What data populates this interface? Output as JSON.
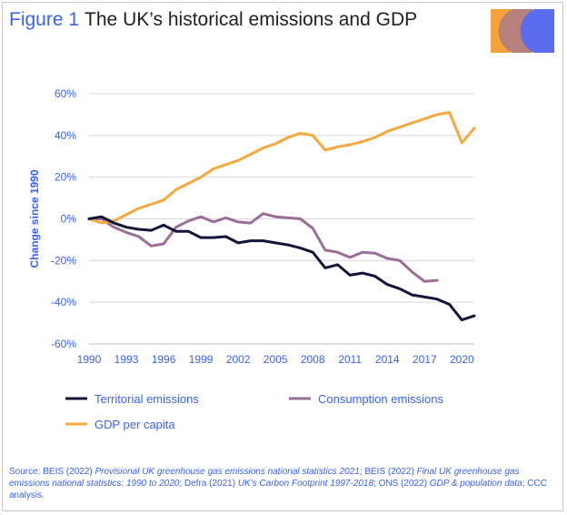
{
  "header": {
    "figure_label": "Figure 1",
    "title": "The UK’s historical emissions and GDP"
  },
  "logo": {
    "colors": [
      "#f5a23a",
      "#b8807a",
      "#5a6cf0"
    ]
  },
  "colors": {
    "accent_blue": "#3a63f0",
    "territorial": "#15153a",
    "consumption": "#9a6e96",
    "gdp": "#f5a93f"
  },
  "chart_data": {
    "type": "line",
    "ylabel": "Change since 1990",
    "xlabel": "",
    "xlim": [
      1990,
      2021
    ],
    "ylim": [
      -60,
      60
    ],
    "x_ticks": [
      1990,
      1993,
      1996,
      1999,
      2002,
      2005,
      2008,
      2011,
      2014,
      2017,
      2020
    ],
    "y_ticks": [
      60,
      40,
      20,
      0,
      -20,
      -40,
      -60
    ],
    "y_tick_labels": [
      "60%",
      "40%",
      "20%",
      "0%",
      "-20%",
      "-40%",
      "-60%"
    ],
    "legend_position": "bottom",
    "series": [
      {
        "name": "Territorial emissions",
        "color": "#15153a",
        "x": [
          1990,
          1991,
          1992,
          1993,
          1994,
          1995,
          1996,
          1997,
          1998,
          1999,
          2000,
          2001,
          2002,
          2003,
          2004,
          2005,
          2006,
          2007,
          2008,
          2009,
          2010,
          2011,
          2012,
          2013,
          2014,
          2015,
          2016,
          2017,
          2018,
          2019,
          2020,
          2021
        ],
        "values": [
          0,
          1,
          -2,
          -4,
          -5,
          -5.5,
          -3,
          -6,
          -6,
          -9,
          -9,
          -8.5,
          -11.5,
          -10.5,
          -10.5,
          -11.5,
          -12.5,
          -14,
          -16,
          -23.5,
          -22,
          -27,
          -26,
          -27.5,
          -31.5,
          -33.5,
          -36.5,
          -37.5,
          -38.5,
          -41,
          -48.5,
          -46.5
        ]
      },
      {
        "name": "Consumption emissions",
        "color": "#9a6e96",
        "x": [
          1990,
          1991,
          1992,
          1993,
          1994,
          1995,
          1996,
          1997,
          1998,
          1999,
          2000,
          2001,
          2002,
          2003,
          2004,
          2005,
          2006,
          2007,
          2008,
          2009,
          2010,
          2011,
          2012,
          2013,
          2014,
          2015,
          2016,
          2017,
          2018
        ],
        "values": [
          0,
          0,
          -4,
          -6.5,
          -8.5,
          -13,
          -12,
          -4,
          -1,
          1,
          -1.5,
          0.5,
          -1.5,
          -2,
          2.5,
          1,
          0.5,
          0,
          -4.5,
          -15,
          -16,
          -18.5,
          -16,
          -16.5,
          -19,
          -20,
          -25.5,
          -30,
          -29.5
        ]
      },
      {
        "name": "GDP per capita",
        "color": "#f5a93f",
        "x": [
          1990,
          1991,
          1992,
          1993,
          1994,
          1995,
          1996,
          1997,
          1998,
          1999,
          2000,
          2001,
          2002,
          2003,
          2004,
          2005,
          2006,
          2007,
          2008,
          2009,
          2010,
          2011,
          2012,
          2013,
          2014,
          2015,
          2016,
          2017,
          2018,
          2019,
          2020,
          2021
        ],
        "values": [
          0,
          -2,
          -1,
          2,
          5,
          7,
          9,
          14,
          17,
          20,
          24,
          26,
          28,
          31,
          34,
          36,
          39,
          41,
          40,
          33,
          34.5,
          35.5,
          37,
          39,
          42,
          44,
          46,
          48,
          50,
          51,
          36.5,
          43.5
        ]
      }
    ]
  },
  "source": {
    "prefix": "Source: BEIS (2022) ",
    "ref1": "Provisional UK greenhouse gas emissions national statistics 2021",
    "sep1": "; BEIS (2022) ",
    "ref2": "Final UK greenhouse gas emissions national statistics: 1990 to 2020",
    "sep2": "; Defra (2021) ",
    "ref3": "UK's Carbon Footprint 1997-2018",
    "sep3": "; ONS (2022) ",
    "ref4": "GDP & population data",
    "suffix": "; CCC analysis."
  }
}
